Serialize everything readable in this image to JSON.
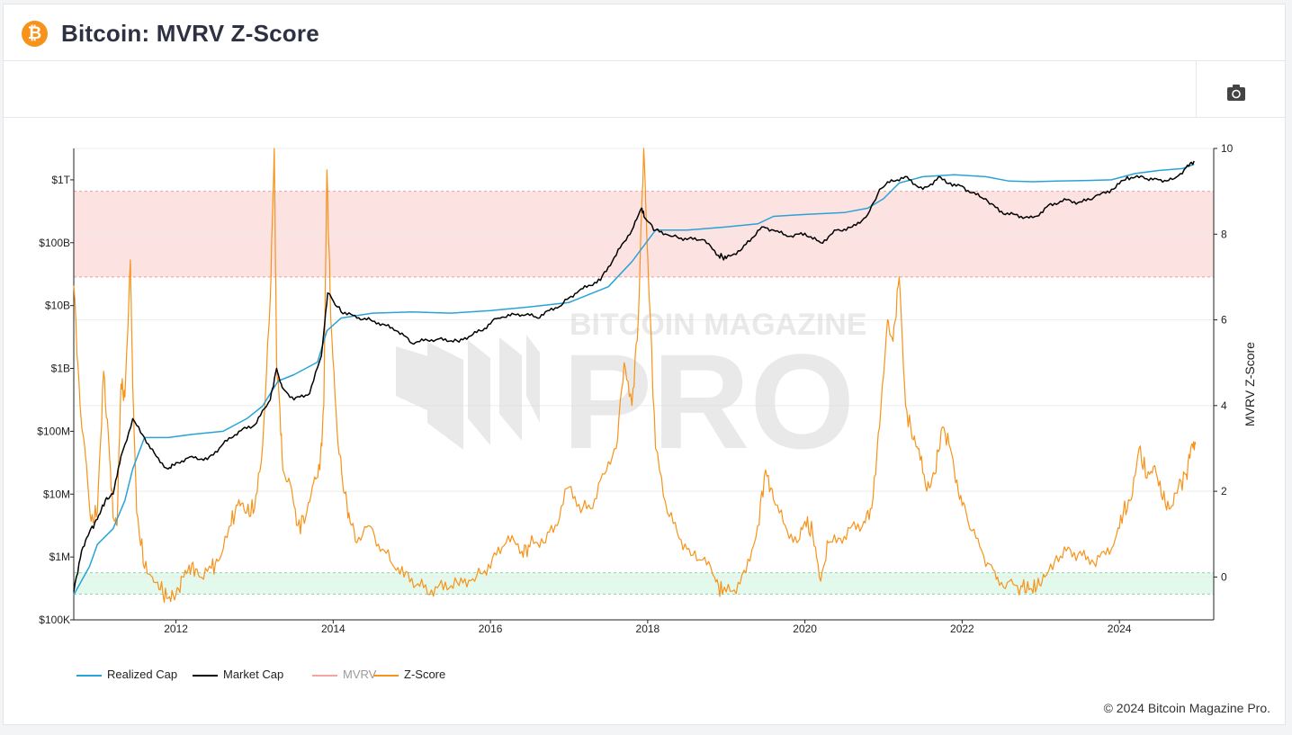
{
  "header": {
    "title": "Bitcoin: MVRV Z-Score",
    "logo_glyph": "₿"
  },
  "toolbar": {
    "camera_icon": "camera-icon"
  },
  "copyright": "© 2024 Bitcoin Magazine Pro.",
  "watermark": {
    "line1": "BITCOIN MAGAZINE",
    "line2": "PRO"
  },
  "colors": {
    "realized": "#29a3d6",
    "market": "#000000",
    "mvrv": "#f4a4a4",
    "zscore": "#f7931a",
    "band_high": "#fde2e2",
    "band_low": "#e3f9ec",
    "brand": "#f7931a"
  },
  "chart_data": {
    "type": "line",
    "x_ticks": [
      "2012",
      "2014",
      "2016",
      "2018",
      "2020",
      "2022",
      "2024"
    ],
    "x_range": [
      2010.7,
      2025.2
    ],
    "y_left": {
      "scale": "log",
      "ticks": [
        "$100K",
        "$1M",
        "$10M",
        "$100M",
        "$1B",
        "$10B",
        "$100B",
        "$1T"
      ],
      "range_log10": [
        5,
        12.5
      ]
    },
    "y_right": {
      "label": "MVRV Z-Score",
      "ticks": [
        "0",
        "2",
        "4",
        "6",
        "8",
        "10"
      ],
      "range": [
        -1,
        10
      ]
    },
    "bands": [
      {
        "name": "high",
        "from": 7,
        "to": 9
      },
      {
        "name": "low",
        "from": -0.4,
        "to": 0.1
      }
    ],
    "legend": [
      "Realized Cap",
      "Market Cap",
      "MVRV",
      "Z-Score"
    ],
    "series": [
      {
        "name": "Realized Cap",
        "axis": "left",
        "x": [
          2010.7,
          2010.9,
          2011.0,
          2011.2,
          2011.35,
          2011.45,
          2011.6,
          2011.9,
          2012.2,
          2012.6,
          2012.9,
          2013.1,
          2013.3,
          2013.5,
          2013.8,
          2013.92,
          2014.1,
          2014.5,
          2015.0,
          2015.5,
          2016.0,
          2016.5,
          2017.0,
          2017.5,
          2017.8,
          2017.95,
          2018.1,
          2018.5,
          2019.0,
          2019.4,
          2019.6,
          2020.0,
          2020.5,
          2020.8,
          2021.0,
          2021.2,
          2021.5,
          2021.9,
          2022.3,
          2022.6,
          2022.9,
          2023.2,
          2023.6,
          2023.9,
          2024.2,
          2024.5,
          2024.8,
          2024.95
        ],
        "log10": [
          5.4,
          5.85,
          6.2,
          6.45,
          6.9,
          7.4,
          7.9,
          7.9,
          7.95,
          8.0,
          8.2,
          8.4,
          8.8,
          8.9,
          9.1,
          9.6,
          9.8,
          9.88,
          9.9,
          9.88,
          9.92,
          9.98,
          10.05,
          10.3,
          10.7,
          10.95,
          11.2,
          11.2,
          11.25,
          11.3,
          11.42,
          11.45,
          11.48,
          11.55,
          11.7,
          11.95,
          12.05,
          12.08,
          12.05,
          11.98,
          11.97,
          11.98,
          11.99,
          12.0,
          12.1,
          12.15,
          12.18,
          12.25
        ]
      },
      {
        "name": "Market Cap",
        "axis": "left",
        "x": [
          2010.7,
          2010.8,
          2010.9,
          2011.0,
          2011.1,
          2011.2,
          2011.3,
          2011.45,
          2011.6,
          2011.75,
          2011.9,
          2012.0,
          2012.2,
          2012.4,
          2012.6,
          2012.8,
          2013.0,
          2013.2,
          2013.28,
          2013.35,
          2013.5,
          2013.7,
          2013.85,
          2013.93,
          2014.1,
          2014.3,
          2014.5,
          2014.8,
          2015.0,
          2015.3,
          2015.6,
          2015.9,
          2016.1,
          2016.4,
          2016.6,
          2016.9,
          2017.1,
          2017.4,
          2017.6,
          2017.8,
          2017.92,
          2017.96,
          2018.1,
          2018.3,
          2018.5,
          2018.7,
          2018.9,
          2019.0,
          2019.2,
          2019.45,
          2019.6,
          2019.8,
          2020.0,
          2020.2,
          2020.4,
          2020.6,
          2020.8,
          2020.95,
          2021.1,
          2021.3,
          2021.5,
          2021.7,
          2021.85,
          2022.0,
          2022.3,
          2022.5,
          2022.7,
          2022.9,
          2023.1,
          2023.3,
          2023.5,
          2023.7,
          2023.9,
          2024.1,
          2024.3,
          2024.5,
          2024.7,
          2024.85,
          2024.95
        ],
        "log10": [
          5.45,
          6.1,
          6.4,
          6.6,
          6.9,
          7.0,
          7.6,
          8.2,
          7.9,
          7.6,
          7.4,
          7.5,
          7.6,
          7.55,
          7.8,
          8.0,
          8.1,
          8.5,
          9.0,
          8.7,
          8.5,
          8.6,
          9.2,
          10.2,
          9.9,
          9.8,
          9.75,
          9.6,
          9.4,
          9.45,
          9.42,
          9.6,
          9.8,
          9.85,
          9.8,
          10.0,
          10.2,
          10.4,
          10.8,
          11.2,
          11.55,
          11.4,
          11.2,
          11.1,
          11.05,
          11.05,
          10.8,
          10.75,
          10.9,
          11.25,
          11.2,
          11.1,
          11.15,
          11.0,
          11.2,
          11.25,
          11.45,
          11.85,
          12.0,
          12.05,
          11.85,
          12.05,
          11.95,
          11.9,
          11.7,
          11.5,
          11.45,
          11.4,
          11.6,
          11.7,
          11.65,
          11.75,
          11.85,
          12.05,
          12.05,
          12.0,
          12.02,
          12.2,
          12.3
        ]
      },
      {
        "name": "Z-Score",
        "axis": "right",
        "x": [
          2010.7,
          2010.78,
          2010.85,
          2010.92,
          2011.0,
          2011.08,
          2011.15,
          2011.2,
          2011.25,
          2011.3,
          2011.35,
          2011.42,
          2011.45,
          2011.5,
          2011.6,
          2011.7,
          2011.8,
          2011.9,
          2012.0,
          2012.1,
          2012.2,
          2012.3,
          2012.45,
          2012.55,
          2012.7,
          2012.8,
          2012.9,
          2013.0,
          2013.1,
          2013.2,
          2013.25,
          2013.28,
          2013.32,
          2013.36,
          2013.45,
          2013.55,
          2013.65,
          2013.75,
          2013.83,
          2013.88,
          2013.92,
          2013.97,
          2014.05,
          2014.12,
          2014.2,
          2014.3,
          2014.45,
          2014.6,
          2014.75,
          2014.9,
          2015.05,
          2015.2,
          2015.4,
          2015.6,
          2015.8,
          2016.0,
          2016.2,
          2016.4,
          2016.5,
          2016.7,
          2016.85,
          2017.0,
          2017.15,
          2017.3,
          2017.45,
          2017.6,
          2017.7,
          2017.8,
          2017.88,
          2017.95,
          2018.0,
          2018.1,
          2018.25,
          2018.4,
          2018.55,
          2018.7,
          2018.85,
          2018.95,
          2019.1,
          2019.25,
          2019.4,
          2019.5,
          2019.6,
          2019.75,
          2019.9,
          2020.0,
          2020.1,
          2020.2,
          2020.3,
          2020.45,
          2020.6,
          2020.75,
          2020.85,
          2020.95,
          2021.05,
          2021.12,
          2021.2,
          2021.28,
          2021.38,
          2021.45,
          2021.55,
          2021.65,
          2021.75,
          2021.85,
          2021.95,
          2022.05,
          2022.2,
          2022.35,
          2022.45,
          2022.6,
          2022.75,
          2022.85,
          2022.95,
          2023.05,
          2023.2,
          2023.35,
          2023.5,
          2023.65,
          2023.8,
          2023.95,
          2024.05,
          2024.15,
          2024.25,
          2024.35,
          2024.45,
          2024.55,
          2024.65,
          2024.75,
          2024.85,
          2024.92,
          2024.97
        ],
        "values": [
          6.8,
          4.0,
          2.8,
          1.3,
          1.5,
          4.8,
          3.0,
          1.4,
          1.2,
          4.5,
          4.2,
          7.4,
          4.5,
          1.5,
          0.2,
          0.0,
          -0.3,
          -0.5,
          -0.4,
          0.0,
          0.3,
          0.0,
          0.2,
          0.4,
          1.2,
          1.8,
          1.5,
          1.6,
          3.0,
          6.5,
          10.0,
          5.0,
          4.0,
          2.5,
          2.2,
          1.2,
          1.4,
          2.2,
          2.5,
          4.0,
          9.5,
          6.0,
          3.4,
          2.2,
          1.5,
          0.8,
          1.2,
          0.6,
          0.3,
          0.0,
          -0.2,
          -0.4,
          -0.3,
          -0.2,
          -0.1,
          0.2,
          0.8,
          0.6,
          0.7,
          0.8,
          1.2,
          2.1,
          1.5,
          1.6,
          2.4,
          3.0,
          5.0,
          4.0,
          6.0,
          10.0,
          7.5,
          3.0,
          1.5,
          0.9,
          0.5,
          0.4,
          0.0,
          -0.4,
          -0.3,
          0.1,
          1.2,
          2.5,
          1.8,
          1.2,
          0.8,
          1.3,
          1.0,
          -0.1,
          0.8,
          0.9,
          1.2,
          1.3,
          1.6,
          3.5,
          6.0,
          5.5,
          7.0,
          4.0,
          3.2,
          3.0,
          2.0,
          2.4,
          3.5,
          3.0,
          2.0,
          1.5,
          0.9,
          0.3,
          0.0,
          -0.1,
          -0.2,
          -0.3,
          -0.25,
          0.0,
          0.5,
          0.7,
          0.6,
          0.4,
          0.6,
          0.9,
          1.5,
          1.8,
          3.0,
          2.3,
          2.6,
          1.8,
          1.6,
          2.1,
          2.4,
          3.1,
          3.1
        ]
      },
      {
        "name": "MVRV",
        "axis": "left",
        "values": []
      }
    ]
  }
}
